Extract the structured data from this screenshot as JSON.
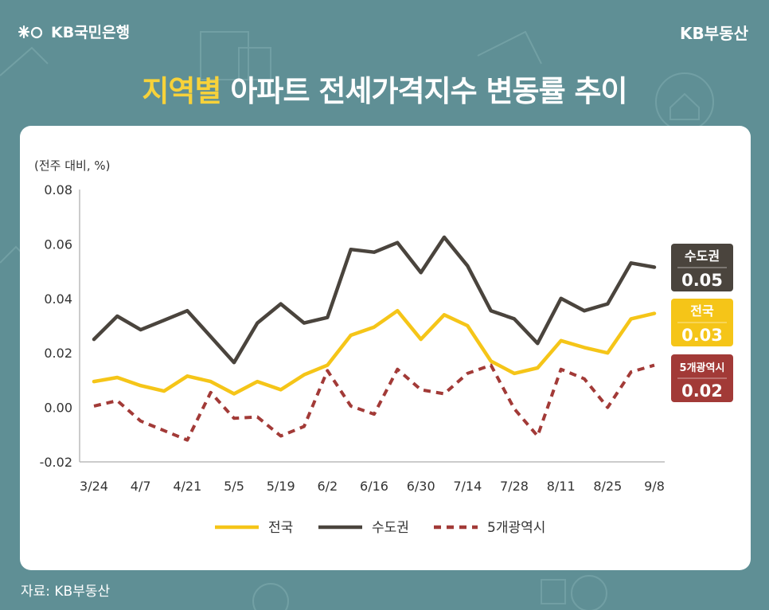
{
  "header": {
    "bank_name": "KB국민은행",
    "brand": "KB부동산"
  },
  "title": {
    "highlight": "지역별",
    "rest": " 아파트 전세가격지수 변동률 추이"
  },
  "source": "자료: KB부동산",
  "colors": {
    "background": "#5f8f95",
    "highlight": "#f7d23a",
    "national": "#f5c518",
    "capital": "#4a443d",
    "metro5": "#a23a37"
  },
  "chart_data": {
    "type": "line",
    "ylabel": "(전주 대비, %)",
    "ylim": [
      -0.02,
      0.08
    ],
    "yticks": [
      "0.08",
      "0.06",
      "0.04",
      "0.02",
      "0.00",
      "-0.02"
    ],
    "ytick_values": [
      0.08,
      0.06,
      0.04,
      0.02,
      0.0,
      -0.02
    ],
    "x": [
      "3/24",
      "3/31",
      "4/7",
      "4/14",
      "4/21",
      "4/28",
      "5/5",
      "5/12",
      "5/19",
      "5/26",
      "6/2",
      "6/9",
      "6/16",
      "6/23",
      "6/30",
      "7/7",
      "7/14",
      "7/21",
      "7/28",
      "8/4",
      "8/11",
      "8/18",
      "8/25",
      "9/1",
      "9/8"
    ],
    "xticks": [
      "3/24",
      "4/7",
      "4/21",
      "5/5",
      "5/19",
      "6/2",
      "6/16",
      "6/30",
      "7/14",
      "7/28",
      "8/11",
      "8/25",
      "9/8"
    ],
    "series": [
      {
        "name": "전국",
        "color": "#f5c518",
        "style": "solid",
        "values": [
          0.0095,
          0.011,
          0.008,
          0.006,
          0.0115,
          0.0095,
          0.005,
          0.0095,
          0.0065,
          0.012,
          0.0155,
          0.0265,
          0.0295,
          0.0355,
          0.025,
          0.034,
          0.03,
          0.017,
          0.0125,
          0.0145,
          0.0245,
          0.022,
          0.02,
          0.0325,
          0.0345
        ],
        "end_label": "0.03"
      },
      {
        "name": "수도권",
        "color": "#4a443d",
        "style": "solid",
        "values": [
          0.025,
          0.0335,
          0.0285,
          0.032,
          0.0355,
          0.026,
          0.0165,
          0.031,
          0.038,
          0.031,
          0.033,
          0.058,
          0.057,
          0.0605,
          0.0495,
          0.0625,
          0.052,
          0.0355,
          0.0325,
          0.0235,
          0.04,
          0.0355,
          0.038,
          0.053,
          0.0515
        ],
        "end_label": "0.05"
      },
      {
        "name": "5개광역시",
        "color": "#a23a37",
        "style": "dashed",
        "values": [
          0.0005,
          0.0025,
          -0.005,
          -0.0085,
          -0.012,
          0.0055,
          -0.004,
          -0.0035,
          -0.0105,
          -0.007,
          0.0135,
          0.0005,
          -0.0025,
          0.014,
          0.0065,
          0.005,
          0.0125,
          0.0155,
          -0.0005,
          -0.0105,
          0.014,
          0.0105,
          0.0,
          0.013,
          0.0155
        ],
        "end_label": "0.02"
      }
    ],
    "legend_position": "bottom-center",
    "grid": false
  }
}
